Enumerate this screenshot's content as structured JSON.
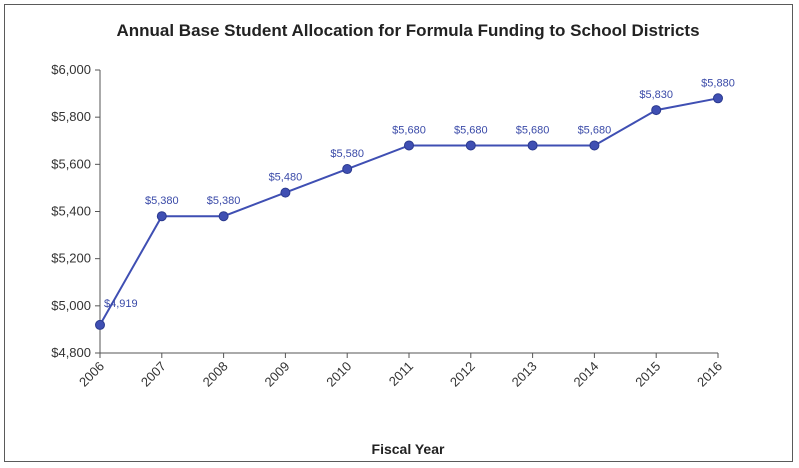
{
  "chart_data": {
    "type": "line",
    "title": "Annual Base Student Allocation for Formula Funding to School Districts",
    "xlabel": "Fiscal Year",
    "ylabel": "",
    "categories": [
      "2006",
      "2007",
      "2008",
      "2009",
      "2010",
      "2011",
      "2012",
      "2013",
      "2014",
      "2015",
      "2016"
    ],
    "values": [
      4919,
      5380,
      5380,
      5480,
      5580,
      5680,
      5680,
      5680,
      5680,
      5830,
      5880
    ],
    "data_labels": [
      "$4,919",
      "$5,380",
      "$5,380",
      "$5,480",
      "$5,580",
      "$5,680",
      "$5,680",
      "$5,680",
      "$5,680",
      "$5,830",
      "$5,880"
    ],
    "ylim": [
      4800,
      6000
    ],
    "yticks": [
      4800,
      5000,
      5200,
      5400,
      5600,
      5800,
      6000
    ],
    "ytick_labels": [
      "$4,800",
      "$5,000",
      "$5,200",
      "$5,400",
      "$5,600",
      "$5,800",
      "$6,000"
    ],
    "grid": false,
    "legend": "none",
    "colors": {
      "line": "#3f4fb3",
      "marker": "#3f4fb3",
      "label": "#3a4aa8",
      "axis": "#555555"
    }
  }
}
